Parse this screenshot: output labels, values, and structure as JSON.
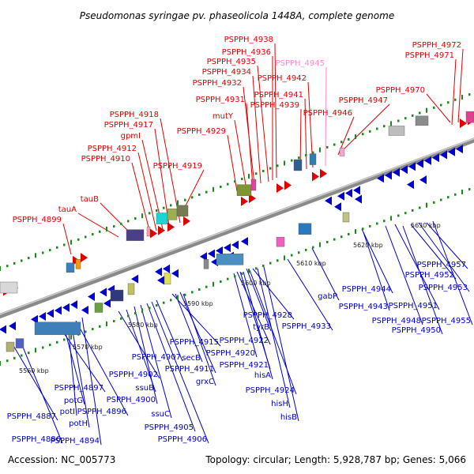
{
  "title": "Pseudomonas syringae pv. phaseolicola 1448A, complete genome",
  "footer": {
    "accession": "Accession: NC_005773",
    "summary": "Topology: circular; Length: 5,928,787 bp; Genes: 5,066"
  },
  "colors": {
    "forward_strand": "#e00000",
    "reverse_strand": "#0000cc",
    "pseudo_label": "#ff88cc",
    "backbone": "#8a8a8a",
    "tick_marks": "#1a8a1a"
  },
  "kbp_marks": [
    "5560 kbp",
    "5570 kbp",
    "5580 kbp",
    "5590 kbp",
    "5600 kbp",
    "5610 kbp",
    "5620 kbp",
    "5630 kbp"
  ],
  "labels_top": [
    "PSPPH_4938",
    "PSPPH_4936",
    "PSPPH_4935",
    "PSPPH_4934",
    "PSPPH_4932",
    "PSPPH_4931",
    "mutY",
    "PSPPH_4929",
    "PSPPH_4945",
    "PSPPH_4942",
    "PSPPH_4941",
    "PSPPH_4939",
    "PSPPH_4946",
    "PSPPH_4947",
    "PSPPH_4972",
    "PSPPH_4971",
    "PSPPH_4970",
    "PSPPH_4918",
    "PSPPH_4917",
    "gpmI",
    "PSPPH_4912",
    "PSPPH_4910",
    "PSPPH_4919",
    "tauB",
    "tauA",
    "PSPPH_4899"
  ],
  "labels_bottom": [
    "PSPPH_4957",
    "PSPPH_4952",
    "PSPPH_4953",
    "PSPPH_4944",
    "PSPPH_4943",
    "PSPPH_4951",
    "PSPPH_4948",
    "PSPPH_4955",
    "PSPPH_4950",
    "gabP",
    "PSPPH_4933",
    "PSPPH_4928",
    "tyrB",
    "PSPPH_4922",
    "PSPPH_4920",
    "PSPPH_4921",
    "hisA",
    "PSPPH_4924",
    "hisH",
    "hisB",
    "PSPPH_4915",
    "secB",
    "PSPPH_4911",
    "grxC",
    "PSPPH_4907",
    "PSPPH_4902",
    "ssuB",
    "PSPPH_4900",
    "ssuC",
    "PSPPH_4905",
    "PSPPH_4906",
    "PSPPH_4897",
    "potG",
    "PSPPH_4896",
    "potI",
    "potH",
    "PSPPH_4887",
    "PSPPH_4886",
    "PSPPH_4894"
  ]
}
